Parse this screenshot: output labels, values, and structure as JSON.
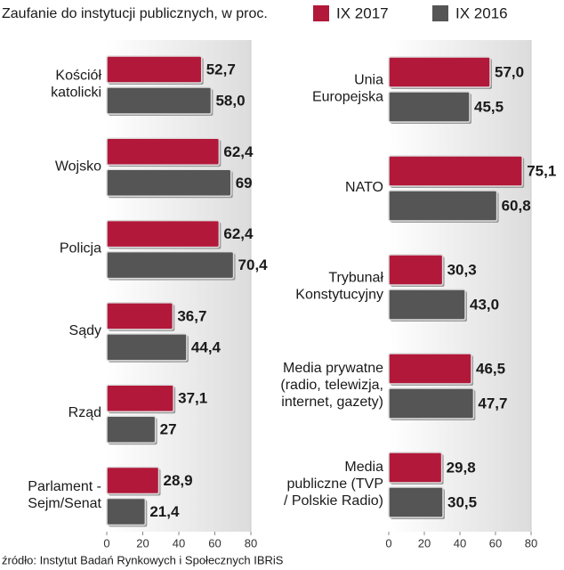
{
  "title": "Zaufanie do instytucji publicznych, w proc.",
  "source": "źródło:  Instytut Badań Rynkowych i Społecznych IBRiS",
  "chart_data": [
    {
      "type": "barh",
      "categories": [
        "Kościół\nkatolicki",
        "Wojsko",
        "Policja",
        "Sądy",
        "Rząd",
        "Parlament -\nSejm/Senat"
      ],
      "series": [
        {
          "name": "IX 2017",
          "color": "#b2183a",
          "values": [
            52.7,
            62.4,
            62.4,
            36.7,
            37.1,
            28.9
          ],
          "value_labels": [
            "52,7",
            "62,4",
            "62,4",
            "36,7",
            "37,1",
            "28,9"
          ]
        },
        {
          "name": "IX 2016",
          "color": "#555555",
          "values": [
            58.0,
            69,
            70.4,
            44.4,
            27,
            21.4
          ],
          "value_labels": [
            "58,0",
            "69",
            "70,4",
            "44,4",
            "27",
            "21,4"
          ]
        }
      ],
      "xlim": [
        0,
        80
      ],
      "xticks": [
        0,
        20,
        40,
        60,
        80
      ]
    },
    {
      "type": "barh",
      "categories": [
        "Unia\nEuropejska",
        "NATO",
        "Trybunał\nKonstytucyjny",
        "Media prywatne\n(radio, telewizja,\ninternet, gazety)",
        "Media\npubliczne (TVP\n/ Polskie Radio)"
      ],
      "series": [
        {
          "name": "IX 2017",
          "color": "#b2183a",
          "values": [
            57.0,
            75.1,
            30.3,
            46.5,
            29.8
          ],
          "value_labels": [
            "57,0",
            "75,1",
            "30,3",
            "46,5",
            "29,8"
          ]
        },
        {
          "name": "IX 2016",
          "color": "#555555",
          "values": [
            45.5,
            60.8,
            43.0,
            47.7,
            30.5
          ],
          "value_labels": [
            "45,5",
            "60,8",
            "43,0",
            "47,7",
            "30,5"
          ]
        }
      ],
      "xlim": [
        0,
        80
      ],
      "xticks": [
        0,
        20,
        40,
        60,
        80
      ]
    }
  ]
}
